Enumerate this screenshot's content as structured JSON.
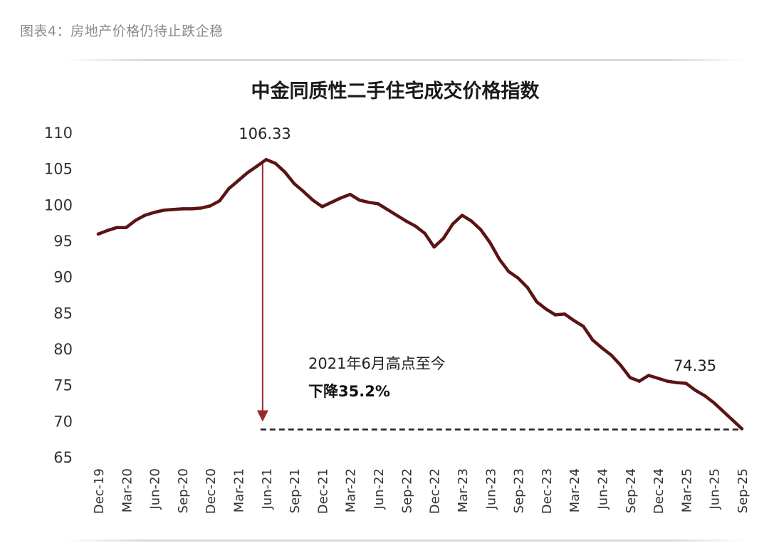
{
  "caption": "图表4：房地产价格仍待止跌企稳",
  "colors": {
    "line": "#5a1414",
    "arrow": "#9a2a2a",
    "baseline": "#222222"
  },
  "chart_data": {
    "type": "line",
    "title": "中金同质性二手住宅成交价格指数",
    "xlabel": "",
    "ylabel": "",
    "ylim": [
      65,
      110
    ],
    "yticks": [
      "110",
      "105",
      "100",
      "95",
      "90",
      "85",
      "80",
      "75",
      "70",
      "65"
    ],
    "xtick_labels": [
      "Dec-19",
      "Mar-20",
      "Jun-20",
      "Sep-20",
      "Dec-20",
      "Mar-21",
      "Jun-21",
      "Sep-21",
      "Dec-21",
      "Mar-22",
      "Jun-22",
      "Sep-22",
      "Dec-22",
      "Mar-23",
      "Jun-23",
      "Sep-23",
      "Dec-23",
      "Mar-24",
      "Jun-24",
      "Sep-24",
      "Dec-24",
      "Mar-25",
      "Jun-25",
      "Sep-25"
    ],
    "x": [
      "Dec-19",
      "Jan-20",
      "Feb-20",
      "Mar-20",
      "Apr-20",
      "May-20",
      "Jun-20",
      "Jul-20",
      "Aug-20",
      "Sep-20",
      "Oct-20",
      "Nov-20",
      "Dec-20",
      "Jan-21",
      "Feb-21",
      "Mar-21",
      "Apr-21",
      "May-21",
      "Jun-21",
      "Jul-21",
      "Aug-21",
      "Sep-21",
      "Oct-21",
      "Nov-21",
      "Dec-21",
      "Jan-22",
      "Feb-22",
      "Mar-22",
      "Apr-22",
      "May-22",
      "Jun-22",
      "Jul-22",
      "Aug-22",
      "Sep-22",
      "Oct-22",
      "Nov-22",
      "Dec-22",
      "Jan-23",
      "Feb-23",
      "Mar-23",
      "Apr-23",
      "May-23",
      "Jun-23",
      "Jul-23",
      "Aug-23",
      "Sep-23",
      "Oct-23",
      "Nov-23",
      "Dec-23",
      "Jan-24",
      "Feb-24",
      "Mar-24",
      "Apr-24",
      "May-24",
      "Jun-24",
      "Jul-24",
      "Aug-24",
      "Sep-24",
      "Oct-24",
      "Nov-24",
      "Dec-24",
      "Jan-25",
      "Feb-25",
      "Mar-25",
      "Apr-25",
      "May-25",
      "Jun-25",
      "Jul-25",
      "Aug-25",
      "Sep-25"
    ],
    "series": [
      {
        "values": [
          96.0,
          96.5,
          96.9,
          96.9,
          97.9,
          98.6,
          99.0,
          99.3,
          99.4,
          99.5,
          99.5,
          99.6,
          99.9,
          100.6,
          102.3,
          103.4,
          104.5,
          105.4,
          106.33,
          105.8,
          104.6,
          103.0,
          101.9,
          100.7,
          99.8,
          100.4,
          101.0,
          101.5,
          100.7,
          100.4,
          100.2,
          99.4,
          98.6,
          97.8,
          97.1,
          96.1,
          94.2,
          95.4,
          97.4,
          98.6,
          97.8,
          96.6,
          94.8,
          92.5,
          90.8,
          89.9,
          88.6,
          86.6,
          85.6,
          84.8,
          84.9,
          84.0,
          83.2,
          81.3,
          80.2,
          79.2,
          77.8,
          76.1,
          75.6,
          76.4,
          76.0,
          75.6,
          75.4,
          75.3,
          74.35,
          73.6,
          72.6,
          71.4,
          70.2,
          69.0
        ]
      }
    ],
    "annotations": {
      "peak_label": "106.33",
      "recent_label": "74.35",
      "note_line1": "2021年6月高点至今",
      "note_line2": "下降35.2%",
      "baseline_value": 69.0,
      "arrow_from": "Jun-21",
      "arrow_top_value": 106.33
    }
  }
}
